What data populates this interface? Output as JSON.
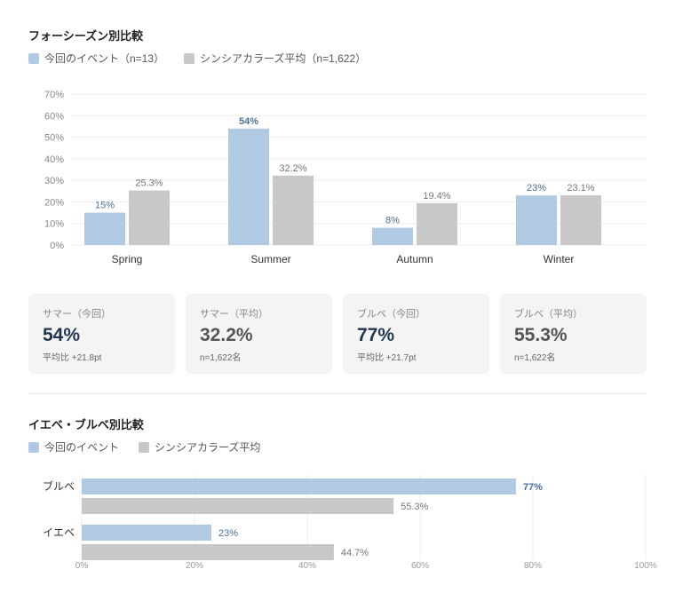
{
  "colors": {
    "current": "#b1cae4",
    "average": "#c8c8c8",
    "current_text": "#4a6f97",
    "average_text": "#777777"
  },
  "section1": {
    "title": "フォーシーズン別比較",
    "legend_current": "今回のイベント（n=13）",
    "legend_average": "シンシアカラーズ平均（n=1,622）"
  },
  "section2": {
    "title": "イエベ・ブルベ別比較",
    "legend_current": "今回のイベント",
    "legend_average": "シンシアカラーズ平均"
  },
  "chart_data": [
    {
      "type": "bar",
      "orientation": "vertical",
      "categories": [
        "Spring",
        "Summer",
        "Autumn",
        "Winter"
      ],
      "series": [
        {
          "name": "今回のイベント（n=13）",
          "values": [
            15,
            54,
            8,
            23
          ],
          "labels": [
            "15%",
            "54%",
            "8%",
            "23%"
          ]
        },
        {
          "name": "シンシアカラーズ平均（n=1,622）",
          "values": [
            25.3,
            32.2,
            19.4,
            23.1
          ],
          "labels": [
            "25.3%",
            "32.2%",
            "19.4%",
            "23.1%"
          ]
        }
      ],
      "ylim": [
        0,
        70
      ],
      "yticks": [
        "0%",
        "10%",
        "20%",
        "30%",
        "40%",
        "50%",
        "60%",
        "70%"
      ],
      "grid": true
    },
    {
      "type": "bar",
      "orientation": "horizontal",
      "categories": [
        "ブルベ",
        "イエベ"
      ],
      "series": [
        {
          "name": "今回のイベント",
          "values": [
            77,
            23
          ],
          "labels": [
            "77%",
            "23%"
          ]
        },
        {
          "name": "シンシアカラーズ平均",
          "values": [
            55.3,
            44.7
          ],
          "labels": [
            "55.3%",
            "44.7%"
          ]
        }
      ],
      "xlim": [
        0,
        100
      ],
      "xticks": [
        "0%",
        "20%",
        "40%",
        "60%",
        "80%",
        "100%"
      ],
      "grid": true
    }
  ],
  "cards": [
    {
      "label": "サマー（今回）",
      "value": "54%",
      "sub": "平均比 +21.8pt",
      "kind": "cur"
    },
    {
      "label": "サマー（平均）",
      "value": "32.2%",
      "sub": "n=1,622名",
      "kind": "avg"
    },
    {
      "label": "ブルベ（今回）",
      "value": "77%",
      "sub": "平均比 +21.7pt",
      "kind": "cur"
    },
    {
      "label": "ブルベ（平均）",
      "value": "55.3%",
      "sub": "n=1,622名",
      "kind": "avg"
    }
  ]
}
